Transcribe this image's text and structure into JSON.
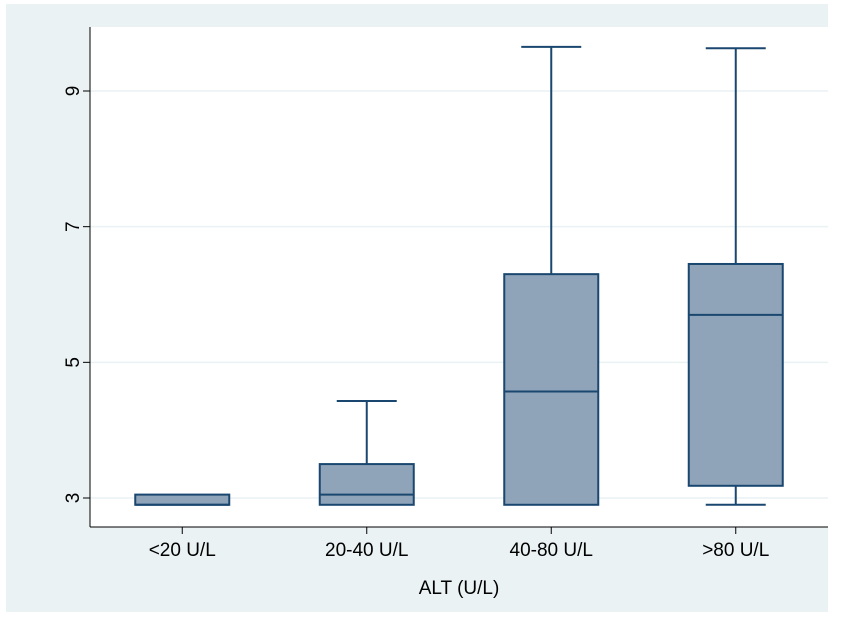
{
  "chart_data": {
    "type": "boxplot",
    "title": "",
    "xlabel": "ALT (U/L)",
    "ylabel": "",
    "ylim": [
      2.6,
      9.9
    ],
    "yticks": [
      3,
      5,
      7,
      9
    ],
    "y_tick_labels": [
      "3",
      "5",
      "7",
      "9"
    ],
    "grid": true,
    "categories": [
      "<20 U/L",
      "20-40 U/L",
      "40-80 U/L",
      ">80 U/L"
    ],
    "boxes": [
      {
        "category": "<20 U/L",
        "whisker_low": 2.9,
        "q1": 2.9,
        "median": 2.9,
        "q3": 3.05,
        "whisker_high": 3.05
      },
      {
        "category": "20-40 U/L",
        "whisker_low": 2.9,
        "q1": 2.9,
        "median": 3.05,
        "q3": 3.5,
        "whisker_high": 4.43
      },
      {
        "category": "40-80 U/L",
        "whisker_low": 2.9,
        "q1": 2.9,
        "median": 4.57,
        "q3": 6.3,
        "whisker_high": 9.65
      },
      {
        "category": ">80 U/L",
        "whisker_low": 2.9,
        "q1": 3.18,
        "median": 5.7,
        "q3": 6.45,
        "whisker_high": 9.63
      }
    ],
    "colors": {
      "box_fill": "#8fa4b9",
      "box_stroke": "#1a476f",
      "plot_bg": "#ffffff",
      "outer_bg": "#eaf2f3",
      "grid": "#eaf2f3"
    }
  }
}
